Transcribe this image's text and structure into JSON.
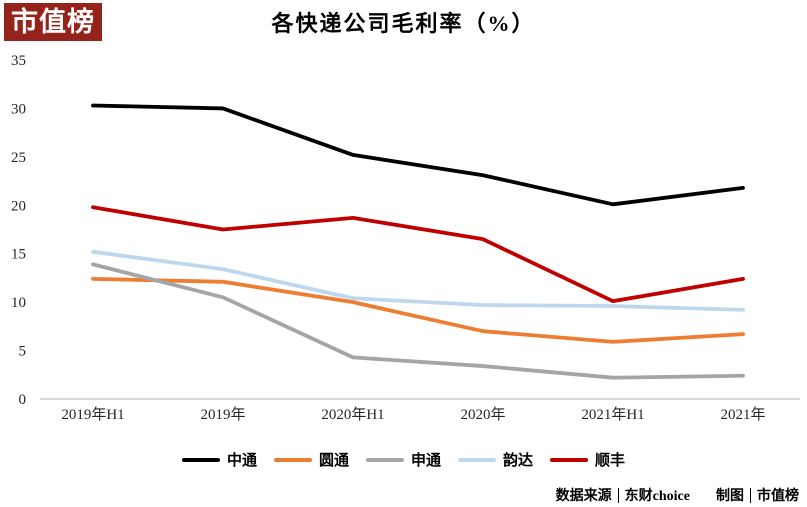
{
  "logo": {
    "text": "市值榜"
  },
  "chart_data": {
    "type": "line",
    "title": "各快递公司毛利率（%）",
    "categories": [
      "2019年H1",
      "2019年",
      "2020年H1",
      "2020年",
      "2021年H1",
      "2021年"
    ],
    "series": [
      {
        "name": "中通",
        "color": "#000000",
        "values": [
          30.3,
          30.0,
          25.2,
          23.1,
          20.1,
          21.8
        ]
      },
      {
        "name": "圆通",
        "color": "#ED7D31",
        "values": [
          12.4,
          12.1,
          10.0,
          7.0,
          5.9,
          6.7
        ]
      },
      {
        "name": "申通",
        "color": "#A5A5A5",
        "values": [
          13.9,
          10.5,
          4.3,
          3.4,
          2.2,
          2.4
        ]
      },
      {
        "name": "韵达",
        "color": "#BDD7EE",
        "values": [
          15.2,
          13.4,
          10.4,
          9.7,
          9.6,
          9.2
        ]
      },
      {
        "name": "顺丰",
        "color": "#C00000",
        "values": [
          19.8,
          17.5,
          18.7,
          16.5,
          10.1,
          12.4
        ]
      }
    ],
    "xlabel": "",
    "ylabel": "",
    "ylim": [
      0,
      35
    ],
    "ytick_step": 5,
    "yticks": [
      0,
      5,
      10,
      15,
      20,
      25,
      30,
      35
    ],
    "grid": false,
    "legend_position": "bottom",
    "axis_color": "#D9D9D9",
    "tick_label_color": "#262626"
  },
  "footer": {
    "source_label": "数据来源",
    "source_value": "东财choice",
    "maker_label": "制图",
    "maker_value": "市值榜"
  }
}
